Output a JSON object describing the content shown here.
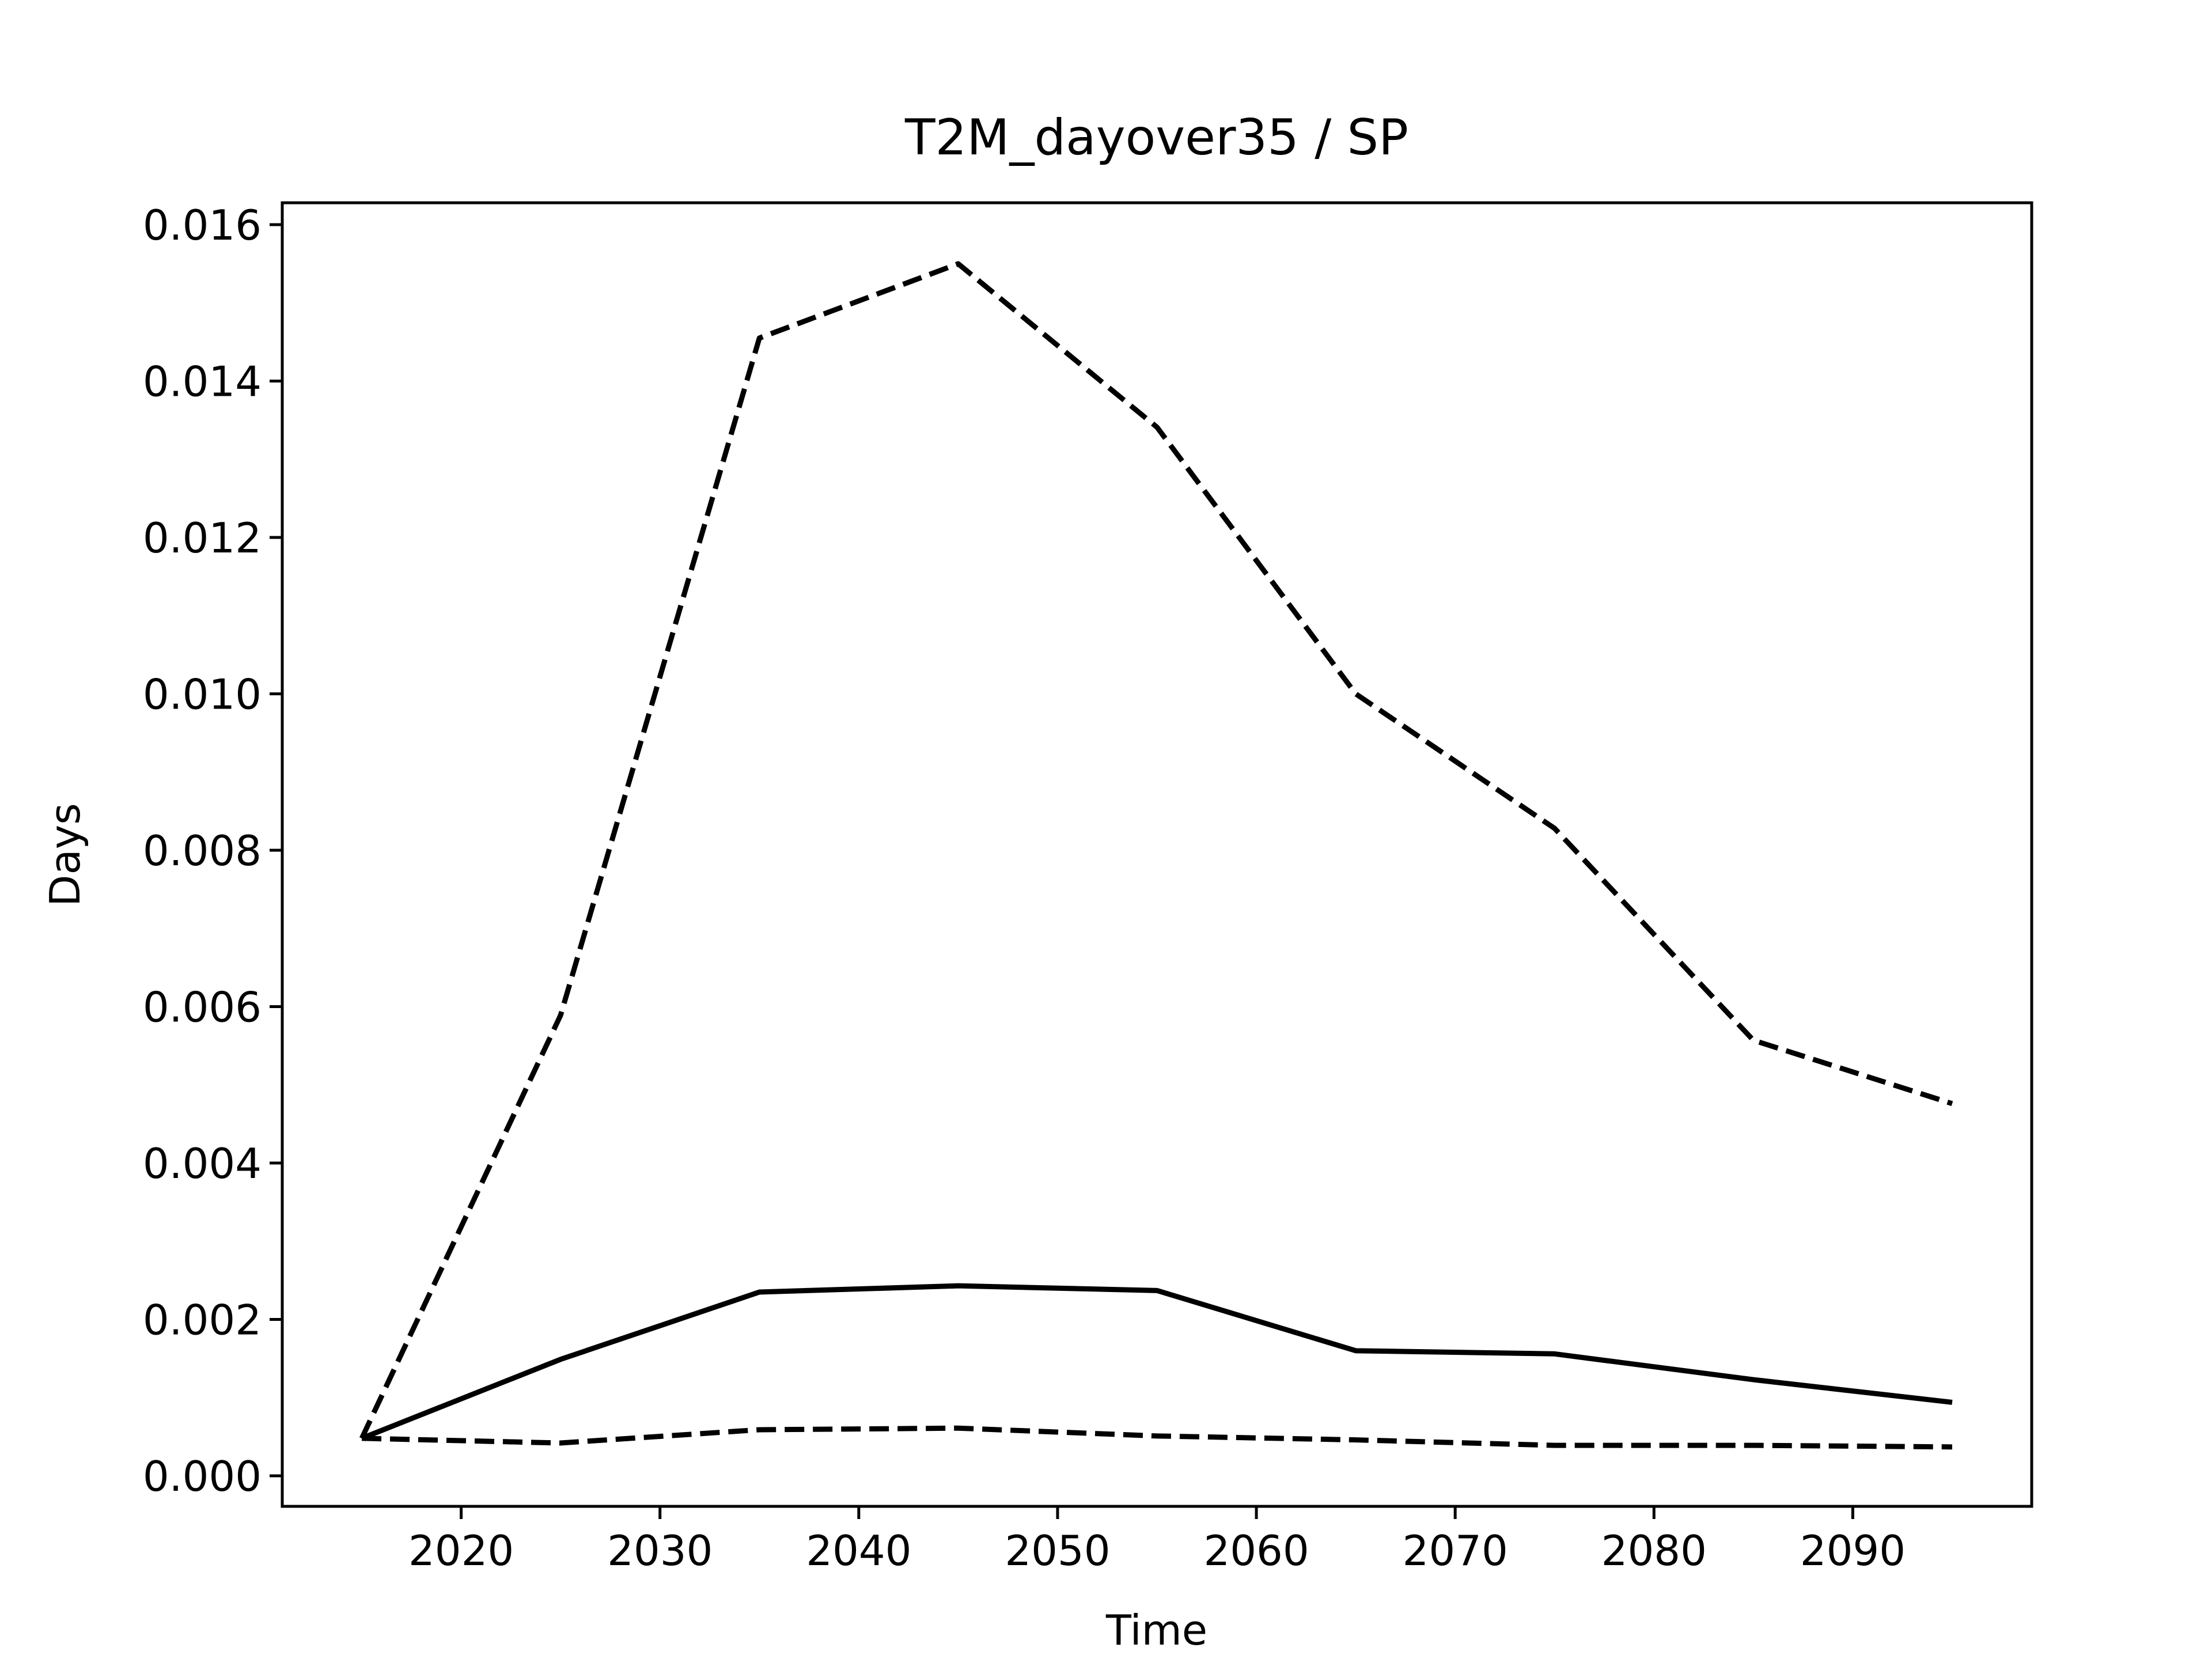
{
  "chart_data": {
    "type": "line",
    "title": "T2M_dayover35 / SP",
    "x_label": "Time",
    "y_label": "Days",
    "x": [
      2015,
      2025,
      2035,
      2045,
      2055,
      2065,
      2075,
      2085,
      2095
    ],
    "series": [
      {
        "color": "#000000",
        "style": "dashed",
        "values": [
          0.00048,
          0.00589,
          0.01455,
          0.0155,
          0.01341,
          0.01,
          0.00828,
          0.00557,
          0.00476
        ]
      },
      {
        "color": "#000000",
        "style": "solid",
        "values": [
          0.00048,
          0.00149,
          0.00235,
          0.00243,
          0.00237,
          0.0016,
          0.00156,
          0.00123,
          0.00094
        ]
      },
      {
        "color": "#000000",
        "style": "dashed",
        "values": [
          0.00048,
          0.00042,
          0.00059,
          0.00061,
          0.00051,
          0.00046,
          0.00039,
          0.00039,
          0.00037
        ]
      }
    ],
    "xlim": [
      2011,
      2099
    ],
    "ylim": [
      -0.00039,
      0.01628
    ],
    "xticks": [
      2020,
      2030,
      2040,
      2050,
      2060,
      2070,
      2080,
      2090
    ],
    "yticks": [
      {
        "value": 0,
        "label": "0.000"
      },
      {
        "value": 0.002,
        "label": "0.002"
      },
      {
        "value": 0.004,
        "label": "0.004"
      },
      {
        "value": 0.006,
        "label": "0.006"
      },
      {
        "value": 0.008,
        "label": "0.008"
      },
      {
        "value": 0.01,
        "label": "0.010"
      },
      {
        "value": 0.012,
        "label": "0.012"
      },
      {
        "value": 0.014,
        "label": "0.014"
      },
      {
        "value": 0.016,
        "label": "0.016"
      }
    ],
    "grid": false
  }
}
